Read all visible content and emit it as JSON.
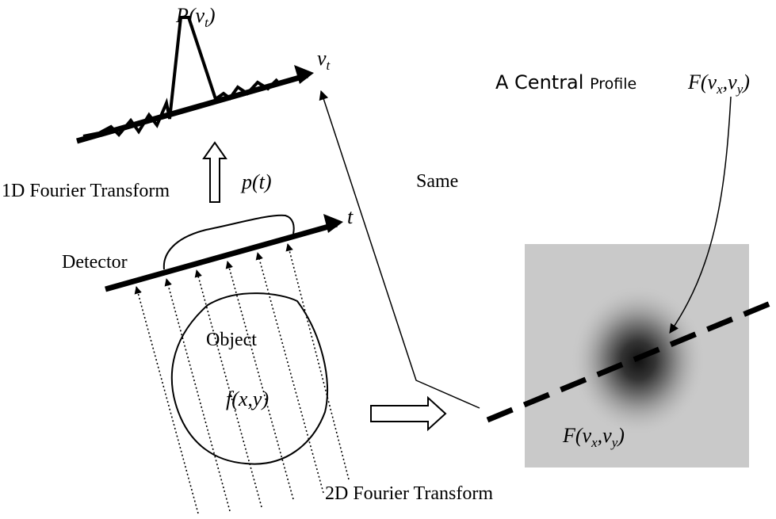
{
  "labels": {
    "spectrum": [
      "P(ν",
      "t",
      ")"
    ],
    "freq_axis": [
      "ν",
      "t"
    ],
    "fourier_1d": "1D Fourier Transform",
    "projection": "p(t)",
    "time_axis": "t",
    "detector": "Detector",
    "object": "Object",
    "object_function": "f(x,y)",
    "same": "Same",
    "central": "A Central",
    "profile": "Profile",
    "profile_function": [
      "F(ν",
      "x",
      ",ν",
      "y",
      ")"
    ],
    "image_function": [
      "F(ν",
      "x",
      ",ν",
      "y",
      ")"
    ],
    "fourier_2d": "2D Fourier Transform"
  }
}
